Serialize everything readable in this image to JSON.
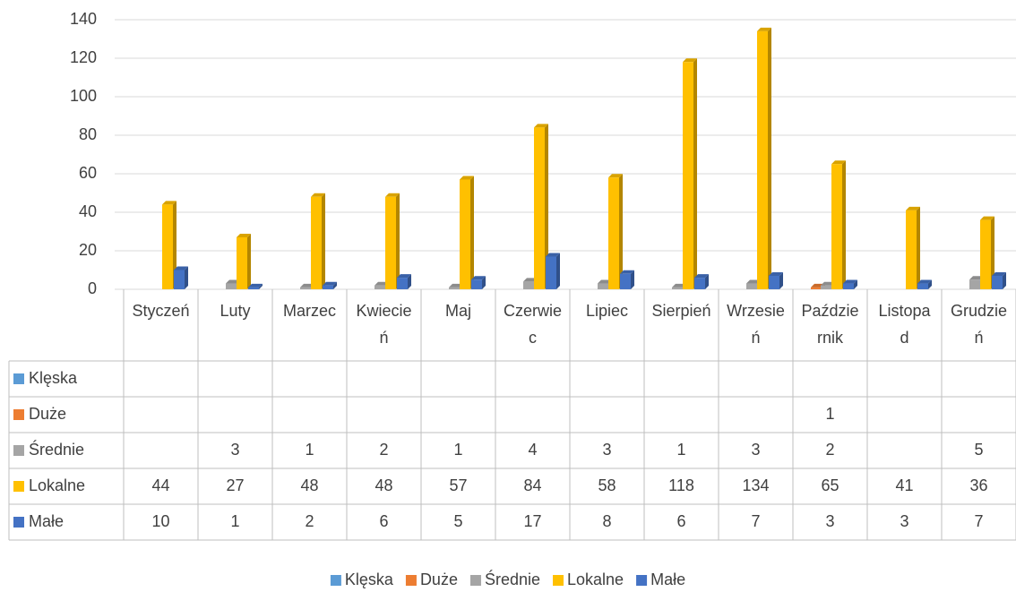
{
  "chart_data": {
    "type": "bar",
    "categories": [
      "Styczeń",
      "Luty",
      "Marzec",
      "Kwiecień",
      "Maj",
      "Czerwiec",
      "Lipiec",
      "Sierpień",
      "Wrzesień",
      "Październik",
      "Listopad",
      "Grudzień"
    ],
    "series": [
      {
        "name": "Klęska",
        "color": "#5b9bd5",
        "values": [
          null,
          null,
          null,
          null,
          null,
          null,
          null,
          null,
          null,
          null,
          null,
          null
        ]
      },
      {
        "name": "Duże",
        "color": "#ed7d31",
        "values": [
          null,
          null,
          null,
          null,
          null,
          null,
          null,
          null,
          null,
          1,
          null,
          null
        ]
      },
      {
        "name": "Średnie",
        "color": "#a5a5a5",
        "values": [
          null,
          3,
          1,
          2,
          1,
          4,
          3,
          1,
          3,
          2,
          null,
          5
        ]
      },
      {
        "name": "Lokalne",
        "color": "#ffc000",
        "values": [
          44,
          27,
          48,
          48,
          57,
          84,
          58,
          118,
          134,
          65,
          41,
          36
        ]
      },
      {
        "name": "Małe",
        "color": "#4472c4",
        "values": [
          10,
          1,
          2,
          6,
          5,
          17,
          8,
          6,
          7,
          3,
          3,
          7
        ]
      }
    ],
    "ylim": [
      0,
      140
    ],
    "yticks": [
      0,
      20,
      40,
      60,
      80,
      100,
      120,
      140
    ],
    "grid": true,
    "legend": "bottom"
  }
}
